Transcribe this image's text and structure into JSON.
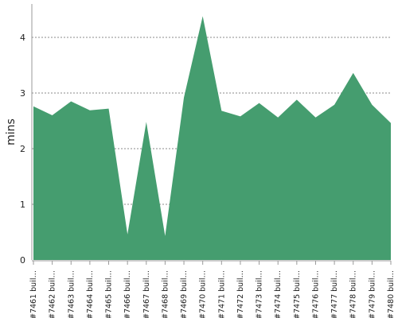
{
  "chart_data": {
    "type": "area",
    "y_label": "mins",
    "categories": [
      "#7461 buil…",
      "#7462 buil…",
      "#7463 buil…",
      "#7464 buil…",
      "#7465 buil…",
      "#7466 buil…",
      "#7467 buil…",
      "#7468 buil…",
      "#7469 buil…",
      "#7470 buil…",
      "#7471 buil…",
      "#7472 buil…",
      "#7473 buil…",
      "#7474 buil…",
      "#7475 buil…",
      "#7476 buil…",
      "#7477 buil…",
      "#7478 buil…",
      "#7479 buil…",
      "#7480 buil…"
    ],
    "values": [
      2.76,
      2.6,
      2.85,
      2.69,
      2.72,
      0.46,
      2.48,
      0.43,
      2.92,
      4.38,
      2.68,
      2.58,
      2.82,
      2.56,
      2.88,
      2.56,
      2.79,
      3.36,
      2.79,
      2.46
    ],
    "color": "#459d6f",
    "ylim": [
      0,
      4.6
    ],
    "yticks": [
      0,
      1,
      2,
      3,
      4
    ],
    "grid": true
  }
}
